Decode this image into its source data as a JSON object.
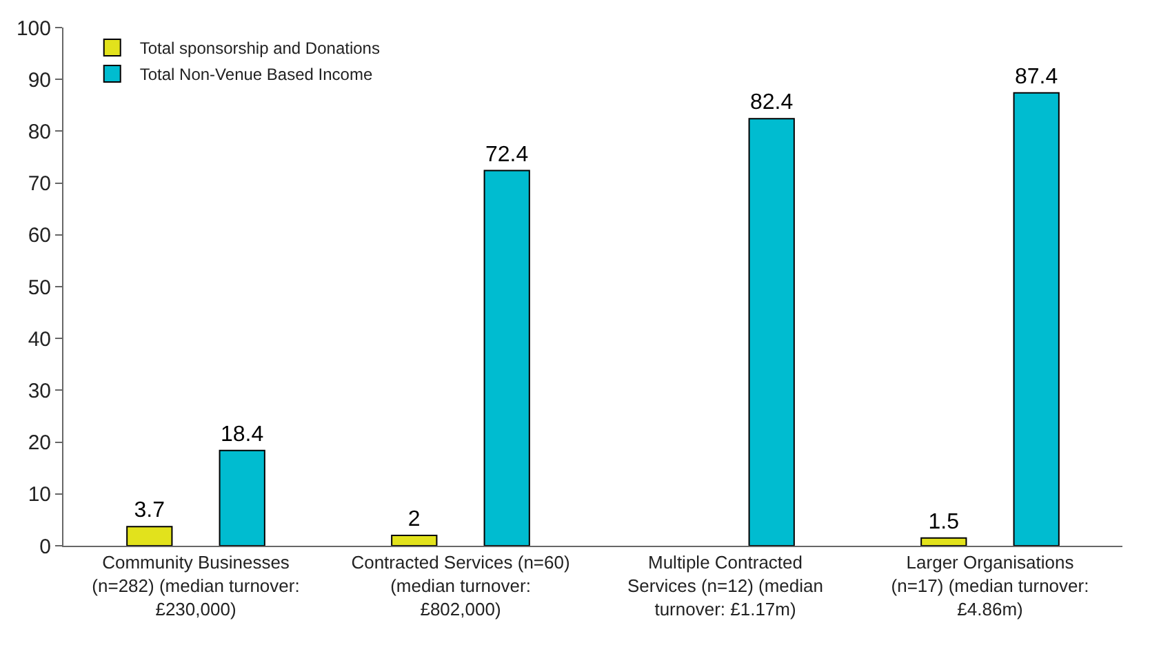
{
  "chart_data": {
    "type": "bar",
    "categories": [
      "Community Businesses (n=282) (median turnover: £230,000)",
      "Contracted Services (n=60) (median turnover: £802,000)",
      "Multiple Contracted Services (n=12) (median turnover: £1.17m)",
      "Larger Organisations (n=17) (median turnover: £4.86m)"
    ],
    "series": [
      {
        "name": "Total sponsorship and Donations",
        "color": "#e2e21c",
        "values": [
          3.7,
          2,
          null,
          1.5
        ]
      },
      {
        "name": "Total Non-Venue Based Income",
        "color": "#00bcd0",
        "values": [
          18.4,
          72.4,
          82.4,
          87.4
        ]
      }
    ],
    "ylim": [
      0,
      100
    ],
    "yticks": [
      0,
      10,
      20,
      30,
      40,
      50,
      60,
      70,
      80,
      90,
      100
    ],
    "data_labels": true,
    "legend": "top left"
  }
}
